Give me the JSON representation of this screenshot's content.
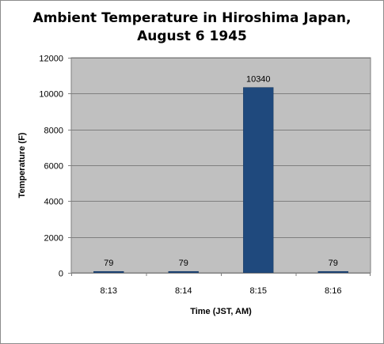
{
  "chart_data": {
    "type": "bar",
    "title_lines": [
      "Ambient Temperature in Hiroshima Japan,",
      "August 6 1945"
    ],
    "categories": [
      "8:13",
      "8:14",
      "8:15",
      "8:16"
    ],
    "values": [
      79,
      79,
      10340,
      79
    ],
    "xlabel": "Time (JST,  AM)",
    "ylabel": "Temperature (F)",
    "ylim": [
      0,
      12000
    ],
    "yticks": [
      0,
      2000,
      4000,
      6000,
      8000,
      10000,
      12000
    ],
    "grid": true,
    "legend": "none",
    "colors": {
      "bar": "#1f497d",
      "plot_background": "#c0c0c0",
      "gridline": "#7f7f7f"
    }
  }
}
